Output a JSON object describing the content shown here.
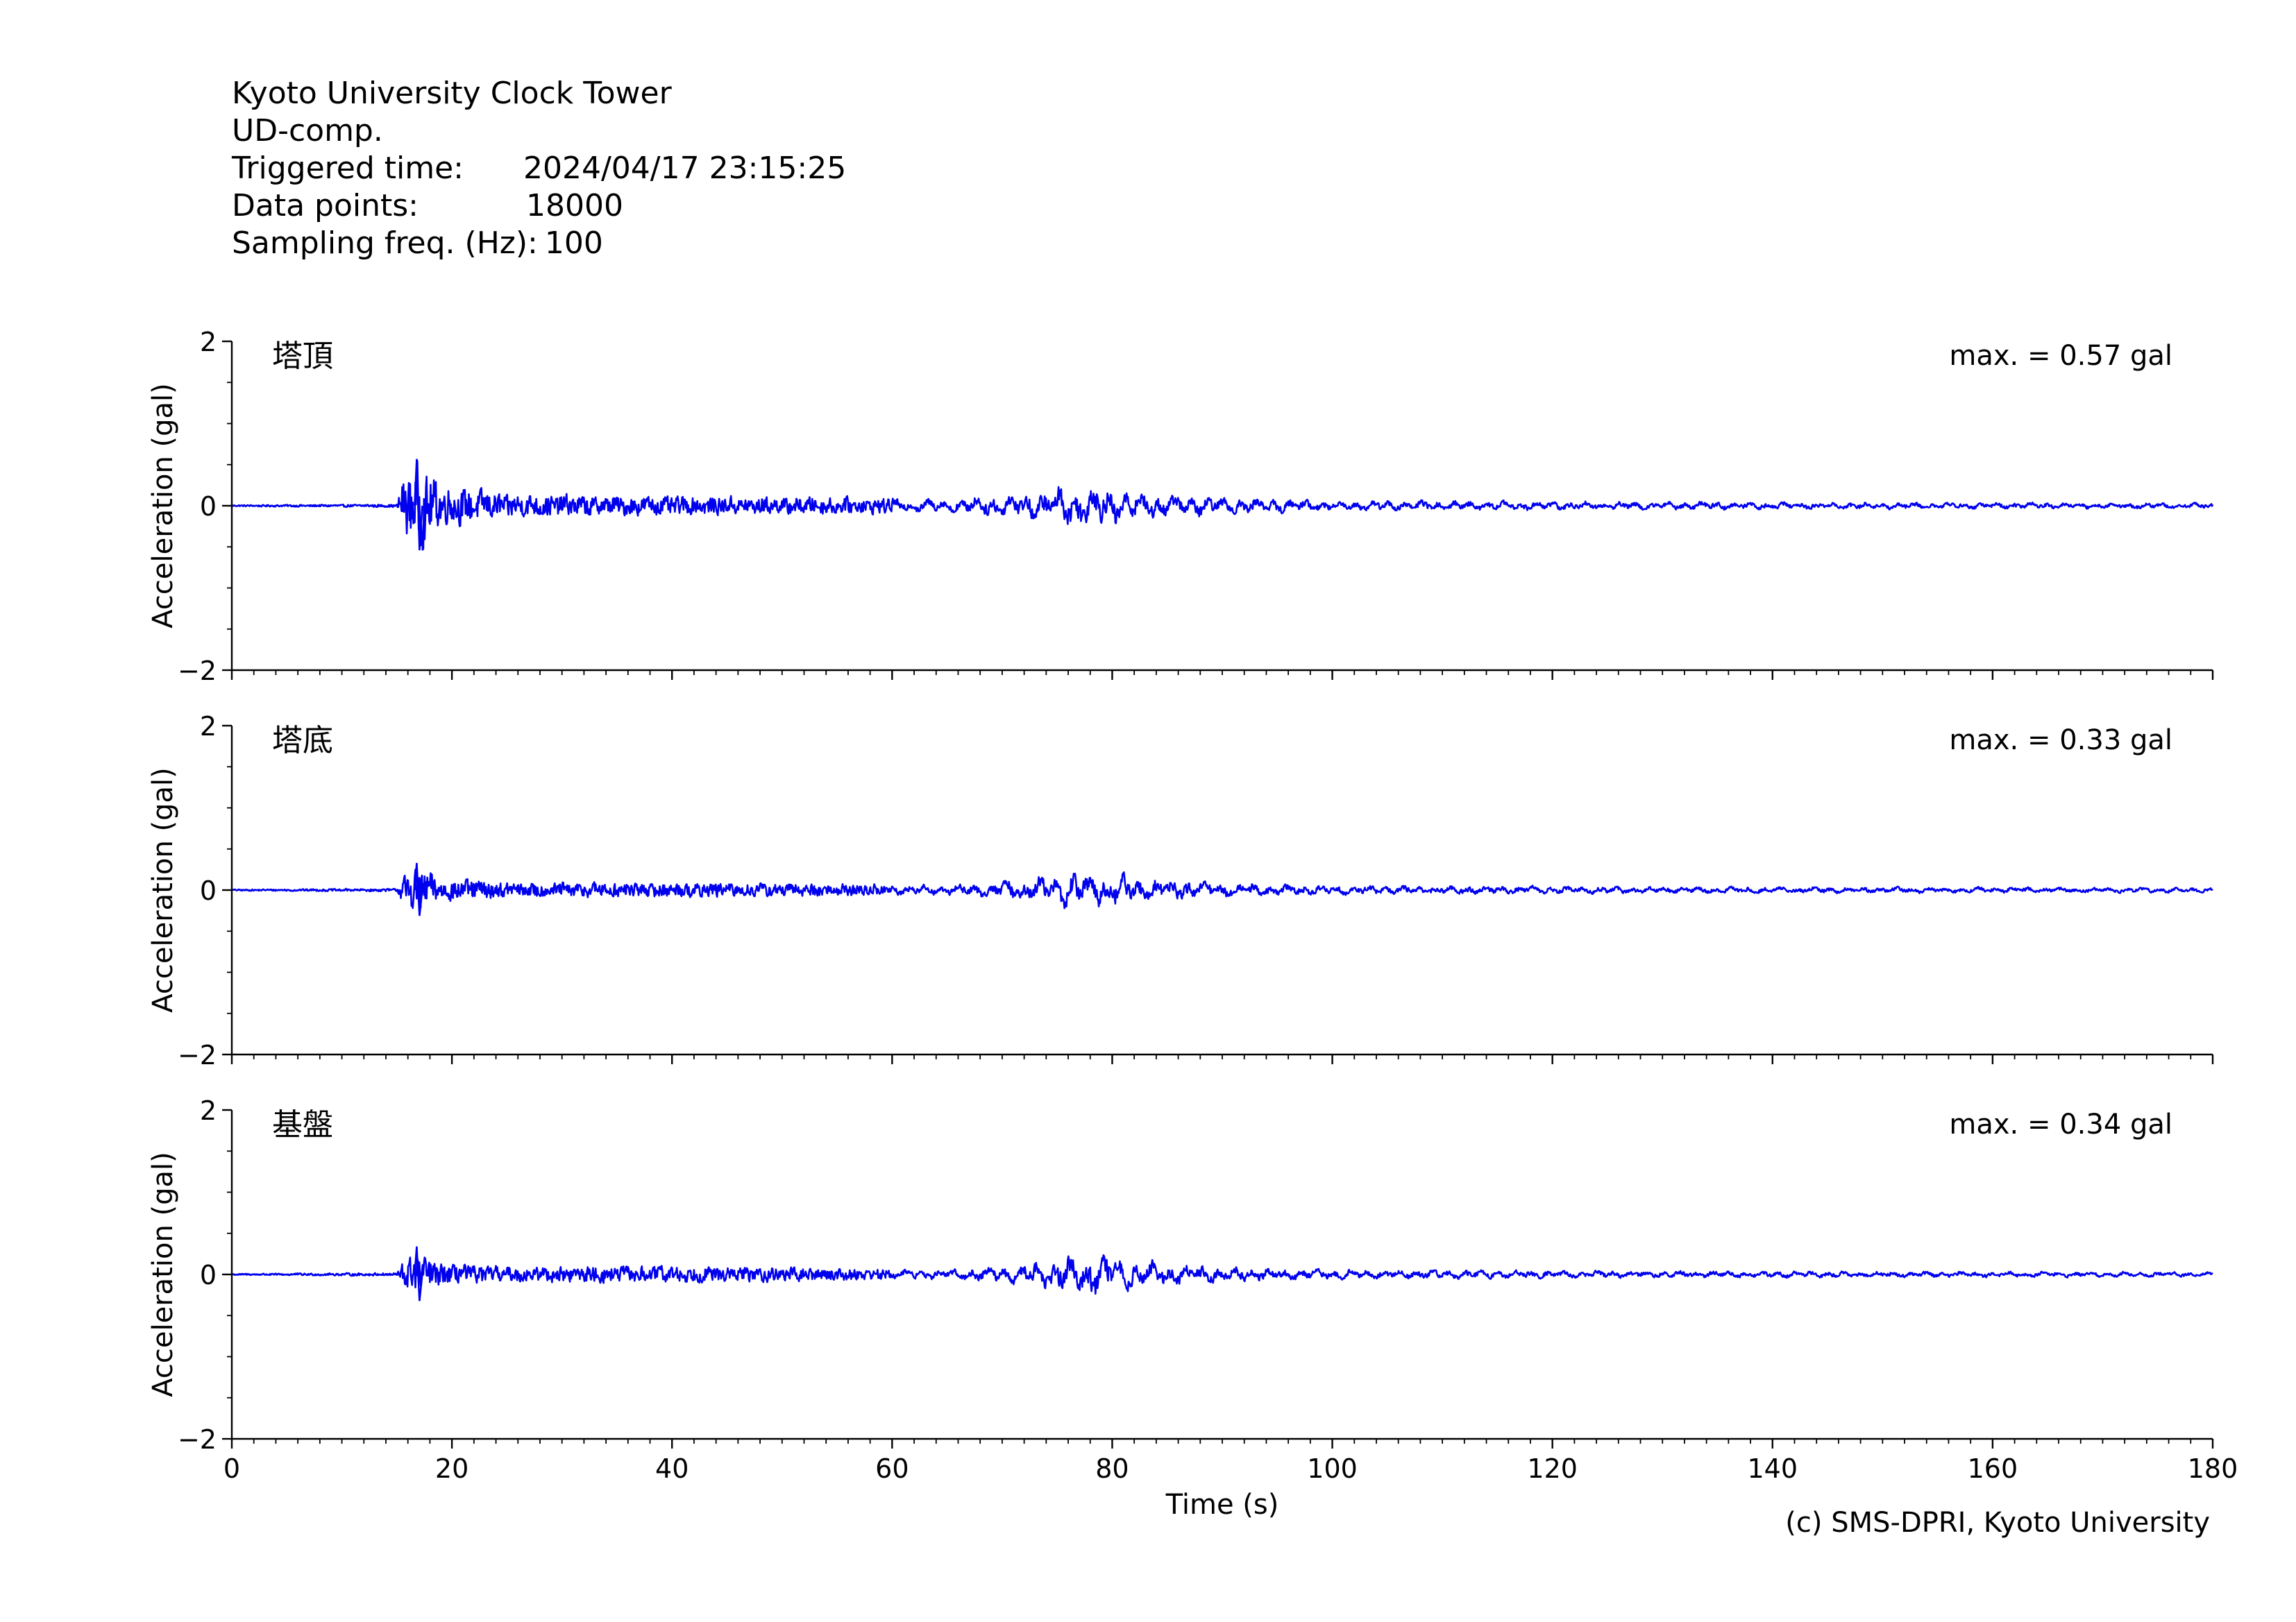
{
  "header": {
    "station": "Kyoto University Clock Tower",
    "component": "UD-comp.",
    "triggered_label": "Triggered time:",
    "triggered_value": "2024/04/17 23:15:25",
    "points_label": "Data points:",
    "points_value": "18000",
    "freq_label": "Sampling freq. (Hz):",
    "freq_value": "100"
  },
  "credit": "(c) SMS-DPRI, Kyoto University",
  "colors": {
    "trace": "#0000ee",
    "axis": "#000000"
  },
  "chart_data": {
    "type": "line",
    "xlabel": "Time (s)",
    "xlim": [
      0,
      180
    ],
    "x_ticks": [
      0,
      20,
      40,
      60,
      80,
      100,
      120,
      140,
      160,
      180
    ],
    "x_tick_labels": [
      "0",
      "20",
      "40",
      "60",
      "80",
      "100",
      "120",
      "140",
      "160",
      "180"
    ],
    "grid": false,
    "panels": [
      {
        "label": "塔頂",
        "ylabel": "Acceleration (gal)",
        "ylim": [
          -2,
          2
        ],
        "y_ticks": [
          -2,
          0,
          2
        ],
        "y_tick_labels": [
          "−2",
          "0",
          "2"
        ],
        "max_text": "max. = 0.57 gal",
        "max": 0.57,
        "envelope": [
          [
            0,
            0.01
          ],
          [
            15,
            0.02
          ],
          [
            15.5,
            0.35
          ],
          [
            17,
            0.57
          ],
          [
            19,
            0.28
          ],
          [
            25,
            0.16
          ],
          [
            35,
            0.13
          ],
          [
            55,
            0.11
          ],
          [
            65,
            0.1
          ],
          [
            72,
            0.2
          ],
          [
            78,
            0.35
          ],
          [
            82,
            0.22
          ],
          [
            90,
            0.13
          ],
          [
            100,
            0.08
          ],
          [
            130,
            0.06
          ],
          [
            180,
            0.04
          ]
        ]
      },
      {
        "label": "塔底",
        "ylabel": "Acceleration (gal)",
        "ylim": [
          -2,
          2
        ],
        "y_ticks": [
          -2,
          0,
          2
        ],
        "y_tick_labels": [
          "−2",
          "0",
          "2"
        ],
        "max_text": "max. = 0.33 gal",
        "max": 0.33,
        "envelope": [
          [
            0,
            0.01
          ],
          [
            15,
            0.02
          ],
          [
            15.5,
            0.22
          ],
          [
            17,
            0.3
          ],
          [
            19,
            0.16
          ],
          [
            25,
            0.1
          ],
          [
            40,
            0.1
          ],
          [
            55,
            0.08
          ],
          [
            65,
            0.07
          ],
          [
            72,
            0.17
          ],
          [
            78,
            0.3
          ],
          [
            82,
            0.2
          ],
          [
            90,
            0.11
          ],
          [
            100,
            0.07
          ],
          [
            130,
            0.05
          ],
          [
            180,
            0.035
          ]
        ]
      },
      {
        "label": "基盤",
        "ylabel": "Acceleration (gal)",
        "ylim": [
          -2,
          2
        ],
        "y_ticks": [
          -2,
          0,
          2
        ],
        "y_tick_labels": [
          "−2",
          "0",
          "2"
        ],
        "max_text": "max. = 0.34 gal",
        "max": 0.34,
        "envelope": [
          [
            0,
            0.01
          ],
          [
            15,
            0.02
          ],
          [
            15.5,
            0.2
          ],
          [
            17,
            0.27
          ],
          [
            19,
            0.15
          ],
          [
            25,
            0.1
          ],
          [
            40,
            0.11
          ],
          [
            55,
            0.08
          ],
          [
            65,
            0.07
          ],
          [
            72,
            0.16
          ],
          [
            78,
            0.32
          ],
          [
            82,
            0.2
          ],
          [
            90,
            0.12
          ],
          [
            100,
            0.07
          ],
          [
            130,
            0.05
          ],
          [
            180,
            0.035
          ]
        ]
      }
    ]
  }
}
